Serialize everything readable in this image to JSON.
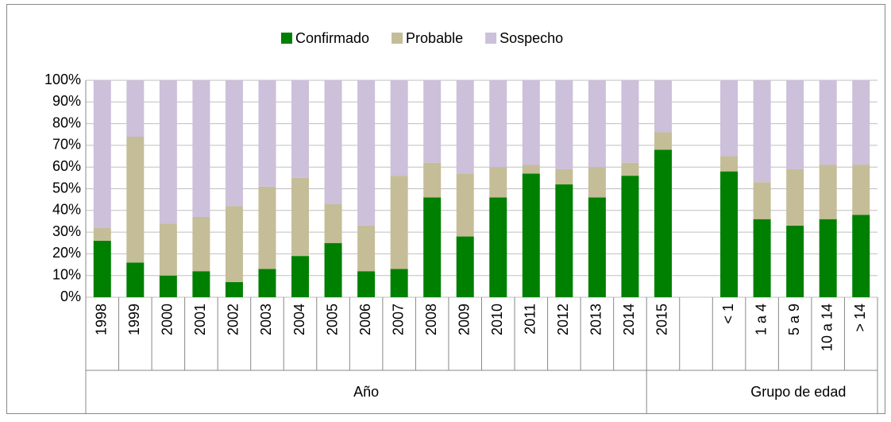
{
  "chart_data": {
    "type": "bar",
    "stacked": true,
    "categories": [
      "1998",
      "1999",
      "2000",
      "2001",
      "2002",
      "2003",
      "2004",
      "2005",
      "2006",
      "2007",
      "2008",
      "2009",
      "2010",
      "2011",
      "2012",
      "2013",
      "2014",
      "2015",
      null,
      "< 1",
      "1 a 4",
      "5 a 9",
      "10 a 14",
      "> 14"
    ],
    "groups": [
      "Año",
      "Grupo de edad"
    ],
    "series": [
      {
        "name": "Confirmado",
        "color": "#008000",
        "values": [
          26,
          16,
          10,
          12,
          7,
          13,
          19,
          25,
          12,
          13,
          46,
          28,
          46,
          57,
          52,
          46,
          56,
          68,
          null,
          58,
          36,
          33,
          36,
          38
        ]
      },
      {
        "name": "Probable",
        "color": "#c4bd97",
        "values": [
          6,
          58,
          24,
          25,
          35,
          38,
          36,
          18,
          21,
          43,
          16,
          29,
          14,
          4,
          7,
          14,
          6,
          8,
          null,
          7,
          17,
          26,
          25,
          23
        ]
      },
      {
        "name": "Sospecho",
        "color": "#ccc0da",
        "values": [
          68,
          26,
          66,
          63,
          58,
          49,
          45,
          57,
          67,
          44,
          38,
          43,
          40,
          39,
          41,
          40,
          38,
          24,
          null,
          35,
          47,
          41,
          39,
          39
        ]
      }
    ],
    "ylim": [
      0,
      100
    ],
    "yticks": [
      {
        "value": 0,
        "label": "0%"
      },
      {
        "value": 10,
        "label": "10%"
      },
      {
        "value": 20,
        "label": "20%"
      },
      {
        "value": 30,
        "label": "30%"
      },
      {
        "value": 40,
        "label": "40%"
      },
      {
        "value": 50,
        "label": "50%"
      },
      {
        "value": 60,
        "label": "60%"
      },
      {
        "value": 70,
        "label": "70%"
      },
      {
        "value": 80,
        "label": "80%"
      },
      {
        "value": 90,
        "label": "90%"
      },
      {
        "value": 100,
        "label": "100%"
      }
    ],
    "grid": true,
    "legend": "top"
  }
}
